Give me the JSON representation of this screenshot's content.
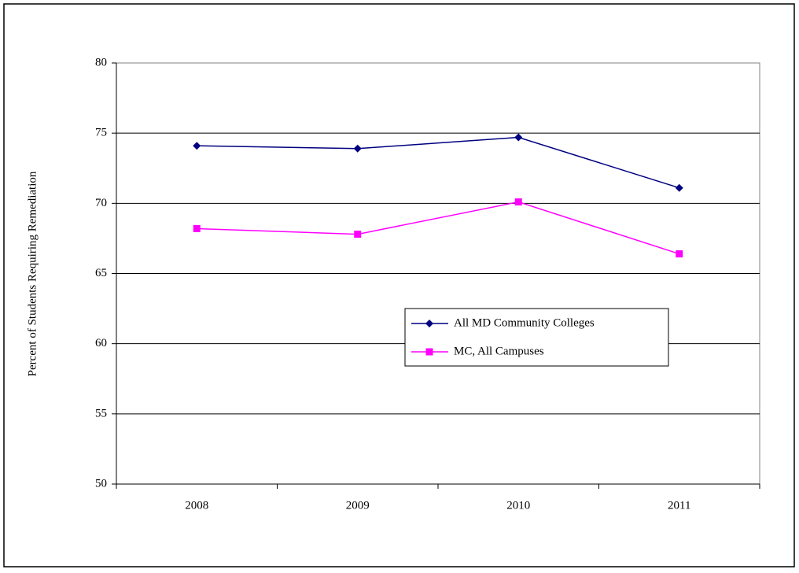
{
  "chart_data": {
    "type": "line",
    "y_label": "Percent of Students Requiring Remediation",
    "categories": [
      "2008",
      "2009",
      "2010",
      "2011"
    ],
    "series": [
      {
        "name": "All MD Community Colleges",
        "color": "#000080",
        "marker": "diamond",
        "values": [
          74.1,
          73.9,
          74.7,
          71.1
        ]
      },
      {
        "name": "MC, All Campuses",
        "color": "#ff00ff",
        "marker": "square",
        "values": [
          68.2,
          67.8,
          70.1,
          66.4
        ]
      }
    ],
    "ylim": [
      50,
      80
    ],
    "yticks": [
      50,
      55,
      60,
      65,
      70,
      75,
      80
    ],
    "grid": true
  }
}
